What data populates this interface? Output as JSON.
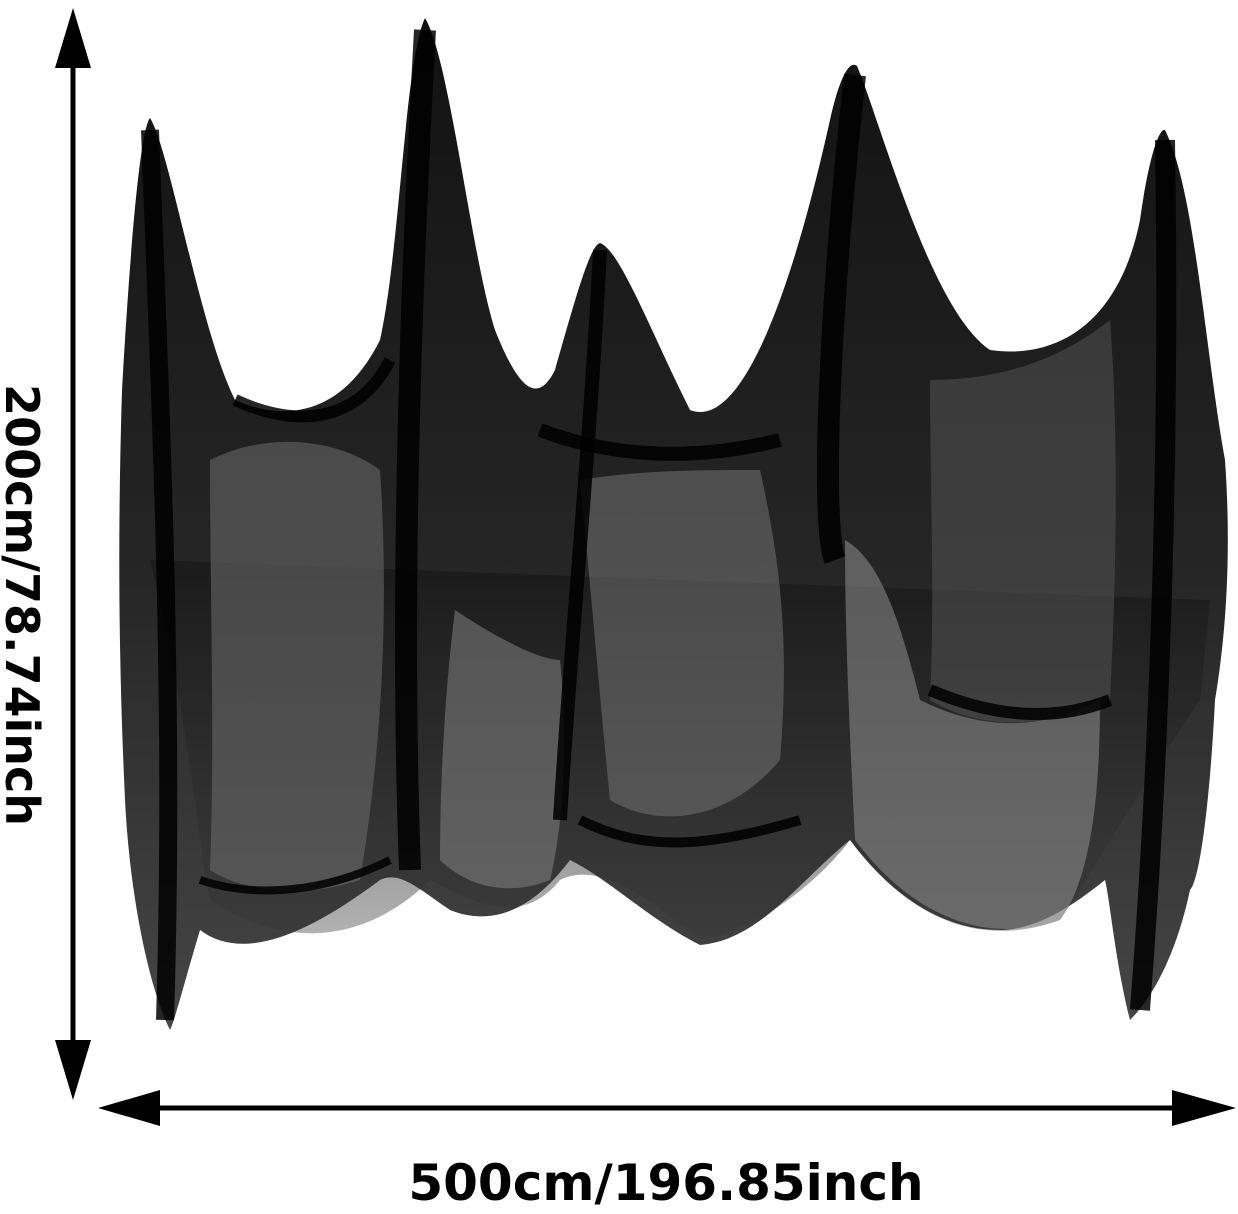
{
  "image": {
    "subject-icon": "black-gauze-curtain-icon",
    "colors": {
      "background": "#ffffff",
      "fabric": "#0b0b0b",
      "sheer": "#7a7a7a",
      "arrow": "#000000"
    }
  },
  "dimensions": {
    "height_label": "200cm/78.74inch",
    "width_label": "500cm/196.85inch"
  }
}
